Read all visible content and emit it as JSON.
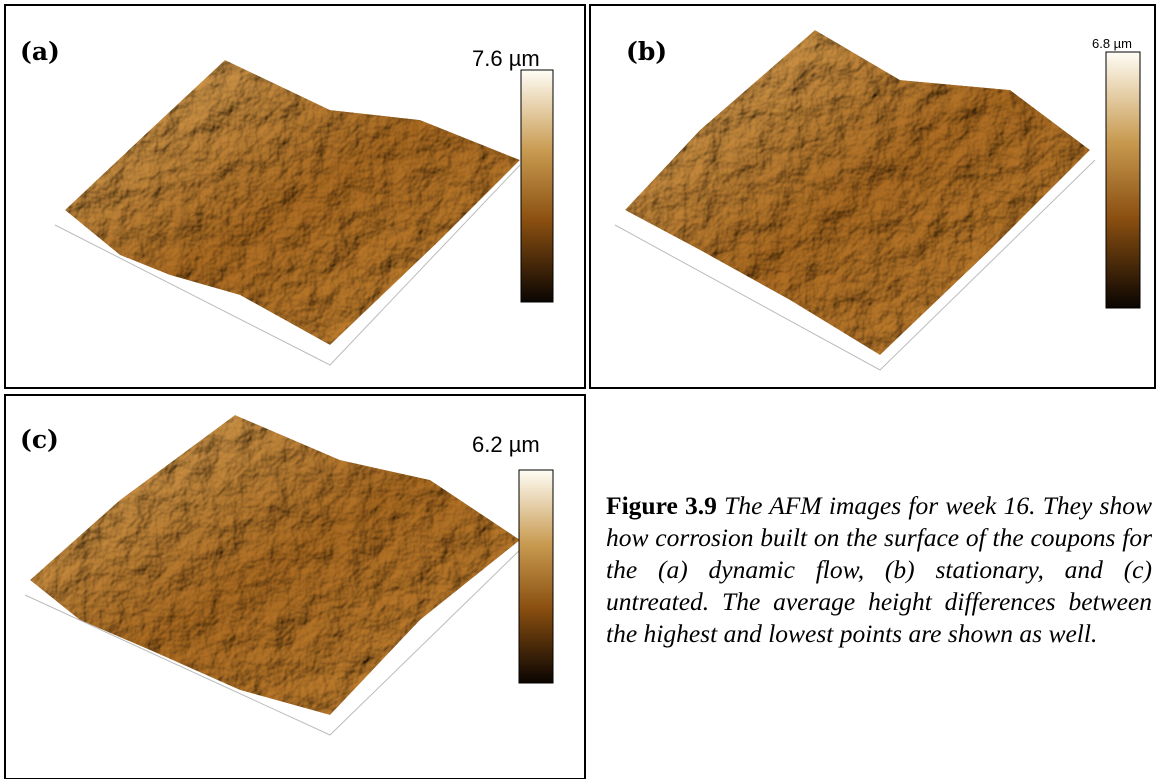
{
  "panels": [
    {
      "label": "(a)",
      "scale": "7.6 µm"
    },
    {
      "label": "(b)",
      "scale": "6.8 µm"
    },
    {
      "label": "(c)",
      "scale": "6.2 µm"
    }
  ],
  "caption": {
    "label": "Figure 3.9",
    "text": "The AFM images for week 16. They show how corrosion built on the surface of the coupons for the (a) dynamic flow, (b) stationary, and (c) untreated. The average height differences between the highest and lowest points are shown as well."
  }
}
